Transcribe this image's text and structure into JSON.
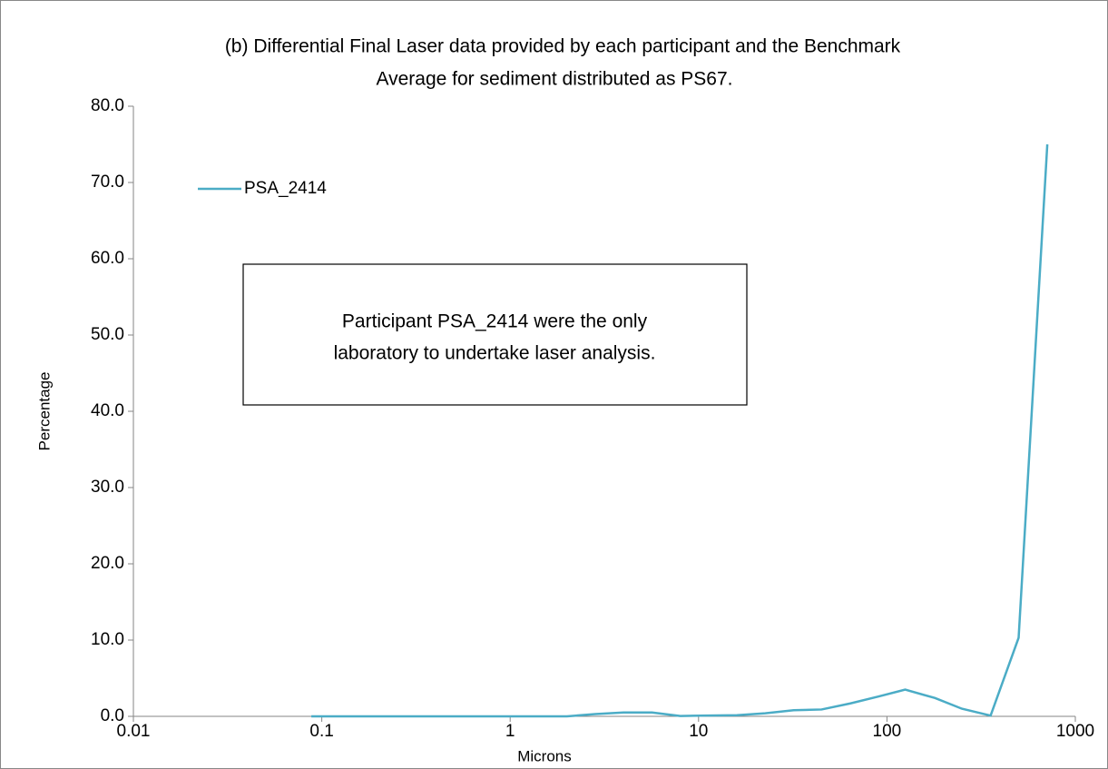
{
  "chart_data": {
    "type": "line",
    "title": [
      "(b) Differential Final Laser data provided by each participant and the Benchmark",
      "Average for sediment distributed as PS67."
    ],
    "x_label": "Microns",
    "y_label": "Percentage",
    "annotation": [
      "Participant PSA_2414 were the only",
      "laboratory to undertake laser analysis."
    ],
    "x_log": true,
    "legend": "top-left",
    "x": [
      0.088,
      0.125,
      0.177,
      0.25,
      0.354,
      0.5,
      0.707,
      1,
      1.41,
      2,
      2.83,
      4,
      5.66,
      8,
      11.3,
      16,
      22.6,
      32,
      45,
      64,
      90,
      125,
      180,
      250,
      355,
      500,
      710
    ],
    "series": [
      {
        "name": "PSA_2414",
        "color": "#4bacc6",
        "values": [
          0,
          0,
          0,
          0,
          0,
          0,
          0,
          0,
          0,
          0,
          0.3,
          0.5,
          0.5,
          0.05,
          0.1,
          0.15,
          0.4,
          0.8,
          0.9,
          1.7,
          2.6,
          3.5,
          2.4,
          1.0,
          0.1,
          10.3,
          75.0
        ]
      }
    ],
    "xlim": [
      0.01,
      1000
    ],
    "xticks": [
      0.01,
      0.1,
      1,
      10,
      100,
      1000
    ],
    "ylim": [
      0,
      80
    ],
    "yticks": [
      {
        "value": 0,
        "label": "0.0"
      },
      {
        "value": 10,
        "label": "10.0"
      },
      {
        "value": 20,
        "label": "20.0"
      },
      {
        "value": 30,
        "label": "30.0"
      },
      {
        "value": 40,
        "label": "40.0"
      },
      {
        "value": 50,
        "label": "50.0"
      },
      {
        "value": 60,
        "label": "60.0"
      },
      {
        "value": 70,
        "label": "70.0"
      },
      {
        "value": 80,
        "label": "80.0"
      }
    ]
  }
}
